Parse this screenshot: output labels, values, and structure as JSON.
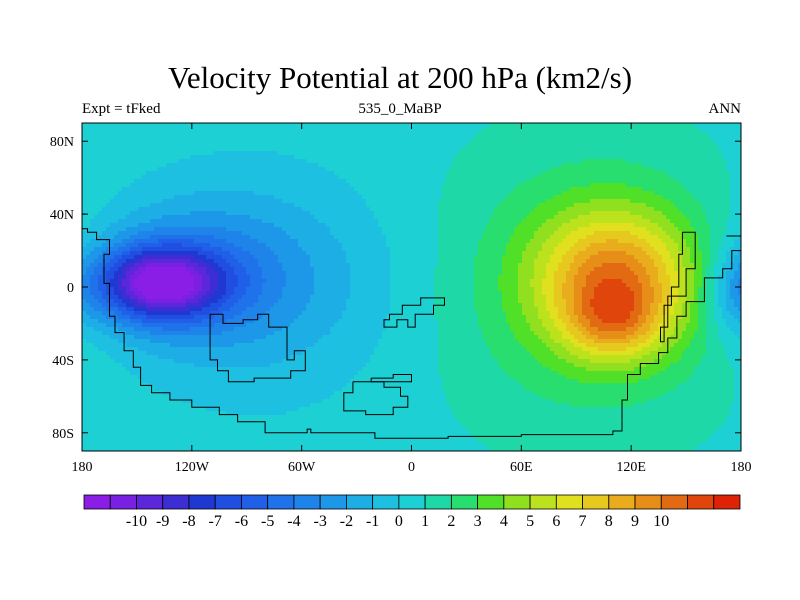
{
  "title": "Velocity Potential at 200 hPa (km2/s)",
  "left_label": "Expt = tFked",
  "center_label": "535_0_MaBP",
  "right_label": "ANN",
  "chart_data": {
    "type": "heatmap",
    "projection": "cylindrical-equidistant",
    "x_range": [
      -180,
      180
    ],
    "y_range": [
      -90,
      90
    ],
    "x_tick_values": [
      -180,
      -120,
      -60,
      0,
      60,
      120,
      180
    ],
    "x_tick_labels": [
      "180",
      "120W",
      "60W",
      "0",
      "60E",
      "120E",
      "180"
    ],
    "y_tick_values": [
      80,
      40,
      0,
      -40,
      -80
    ],
    "y_tick_labels": [
      "80N",
      "40N",
      "0",
      "40S",
      "80S"
    ],
    "colorbar": {
      "levels": [
        -10,
        -9,
        -8,
        -7,
        -6,
        -5,
        -4,
        -3,
        -2,
        -1,
        0,
        1,
        2,
        3,
        4,
        5,
        6,
        7,
        8,
        9,
        10
      ],
      "labels": [
        "-10",
        "-9",
        "-8",
        "-7",
        "-6",
        "-5",
        "-4",
        "-3",
        "-2",
        "-1",
        "0",
        "1",
        "2",
        "3",
        "4",
        "5",
        "6",
        "7",
        "8",
        "9",
        "10"
      ],
      "colors": [
        "#8a1ee6",
        "#7a20e2",
        "#5c26da",
        "#3c2ed2",
        "#2038d2",
        "#1f4ee0",
        "#2060e8",
        "#1f72ea",
        "#1e84ea",
        "#1d98e8",
        "#1eaee6",
        "#1ec0e2",
        "#1dd0d4",
        "#1ed8a8",
        "#28de6e",
        "#50e028",
        "#90e020",
        "#bce21e",
        "#e0e01e",
        "#e6c81e",
        "#e8ac1c",
        "#e68e18",
        "#e26a12",
        "#e0450c",
        "#dd2206"
      ]
    },
    "field_centers": [
      {
        "lon": -138,
        "lat": 2,
        "value": -8.5,
        "sx": 24,
        "sy": 14
      },
      {
        "lon": -120,
        "lat": 6,
        "value": -3.0,
        "sx": 45,
        "sy": 28
      },
      {
        "lon": -80,
        "lat": 0,
        "value": -1.5,
        "sx": 80,
        "sy": 45
      },
      {
        "lon": 112,
        "lat": 4,
        "value": 6.3,
        "sx": 30,
        "sy": 26
      },
      {
        "lon": 110,
        "lat": -20,
        "value": 3.0,
        "sx": 18,
        "sy": 14
      },
      {
        "lon": 98,
        "lat": 0,
        "value": 2.5,
        "sx": 70,
        "sy": 55
      },
      {
        "lon": 175,
        "lat": -5,
        "value": -1.5,
        "sx": 10,
        "sy": 16
      }
    ],
    "coastlines": [
      [
        [
          -180,
          32
        ],
        [
          -177,
          32
        ],
        [
          -177,
          30
        ],
        [
          -172,
          30
        ],
        [
          -172,
          26
        ],
        [
          -165,
          26
        ],
        [
          -165,
          18
        ],
        [
          -168,
          18
        ],
        [
          -168,
          2
        ],
        [
          -165,
          2
        ],
        [
          -165,
          -16
        ],
        [
          -162,
          -16
        ],
        [
          -162,
          -25
        ],
        [
          -157,
          -25
        ],
        [
          -157,
          -35
        ],
        [
          -152,
          -35
        ],
        [
          -152,
          -44
        ],
        [
          -148,
          -44
        ],
        [
          -148,
          -54
        ],
        [
          -142,
          -54
        ],
        [
          -142,
          -58
        ],
        [
          -132,
          -58
        ],
        [
          -132,
          -62
        ],
        [
          -120,
          -62
        ],
        [
          -120,
          -66
        ],
        [
          -105,
          -66
        ],
        [
          -105,
          -70
        ],
        [
          -95,
          -70
        ],
        [
          -95,
          -74
        ],
        [
          -80,
          -74
        ],
        [
          -80,
          -80
        ],
        [
          -57,
          -80
        ],
        [
          -57,
          -78
        ],
        [
          -55,
          -78
        ],
        [
          -55,
          -80
        ],
        [
          -20,
          -80
        ],
        [
          -20,
          -83
        ],
        [
          20,
          -83
        ],
        [
          20,
          -82
        ],
        [
          60,
          -82
        ],
        [
          60,
          -81
        ],
        [
          110,
          -81
        ],
        [
          110,
          -79
        ],
        [
          115,
          -79
        ],
        [
          115,
          -62
        ],
        [
          118,
          -62
        ],
        [
          118,
          -48
        ],
        [
          125,
          -48
        ],
        [
          125,
          -42
        ],
        [
          135,
          -42
        ],
        [
          135,
          -36
        ],
        [
          140,
          -36
        ],
        [
          140,
          -28
        ],
        [
          145,
          -28
        ],
        [
          145,
          -16
        ],
        [
          150,
          -16
        ],
        [
          150,
          -8
        ],
        [
          160,
          -8
        ],
        [
          160,
          5
        ],
        [
          170,
          5
        ],
        [
          170,
          10
        ],
        [
          175,
          10
        ],
        [
          175,
          20
        ],
        [
          180,
          20
        ]
      ],
      [
        [
          -110,
          -15
        ],
        [
          -103,
          -15
        ],
        [
          -103,
          -20
        ],
        [
          -92,
          -20
        ],
        [
          -92,
          -18
        ],
        [
          -84,
          -18
        ],
        [
          -84,
          -15
        ],
        [
          -78,
          -15
        ],
        [
          -78,
          -22
        ],
        [
          -68,
          -22
        ],
        [
          -68,
          -40
        ],
        [
          -64,
          -40
        ],
        [
          -64,
          -35
        ],
        [
          -58,
          -35
        ],
        [
          -58,
          -46
        ],
        [
          -66,
          -46
        ],
        [
          -66,
          -50
        ],
        [
          -86,
          -50
        ],
        [
          -86,
          -52
        ],
        [
          -100,
          -52
        ],
        [
          -100,
          -46
        ],
        [
          -106,
          -46
        ],
        [
          -106,
          -40
        ],
        [
          -110,
          -40
        ],
        [
          -110,
          -15
        ]
      ],
      [
        [
          -12,
          -15
        ],
        [
          -5,
          -15
        ],
        [
          -5,
          -10
        ],
        [
          5,
          -10
        ],
        [
          5,
          -6
        ],
        [
          18,
          -6
        ],
        [
          18,
          -10
        ],
        [
          12,
          -10
        ],
        [
          12,
          -15
        ],
        [
          2,
          -15
        ],
        [
          2,
          -22
        ],
        [
          -2,
          -22
        ],
        [
          -2,
          -18
        ],
        [
          -8,
          -18
        ],
        [
          -8,
          -22
        ],
        [
          -15,
          -22
        ],
        [
          -15,
          -18
        ],
        [
          -12,
          -18
        ],
        [
          -12,
          -15
        ]
      ],
      [
        [
          -32,
          -52
        ],
        [
          -15,
          -52
        ],
        [
          -15,
          -55
        ],
        [
          -6,
          -55
        ],
        [
          -6,
          -60
        ],
        [
          -2,
          -60
        ],
        [
          -2,
          -66
        ],
        [
          -10,
          -66
        ],
        [
          -10,
          -70
        ],
        [
          -25,
          -70
        ],
        [
          -25,
          -68
        ],
        [
          -37,
          -68
        ],
        [
          -37,
          -58
        ],
        [
          -32,
          -58
        ],
        [
          -32,
          -52
        ]
      ],
      [
        [
          -22,
          -50
        ],
        [
          -10,
          -50
        ],
        [
          -10,
          -48
        ],
        [
          0,
          -48
        ],
        [
          0,
          -52
        ],
        [
          -22,
          -52
        ],
        [
          -22,
          -50
        ]
      ],
      [
        [
          148,
          30
        ],
        [
          155,
          30
        ],
        [
          155,
          10
        ],
        [
          150,
          10
        ],
        [
          150,
          -5
        ],
        [
          140,
          -5
        ],
        [
          140,
          -22
        ],
        [
          136,
          -22
        ],
        [
          136,
          -30
        ],
        [
          138,
          -30
        ],
        [
          138,
          -10
        ],
        [
          142,
          -10
        ],
        [
          142,
          0
        ],
        [
          146,
          0
        ],
        [
          146,
          18
        ],
        [
          148,
          18
        ],
        [
          148,
          30
        ]
      ],
      [
        [
          172,
          28
        ],
        [
          180,
          28
        ]
      ],
      [
        [
          -180,
          40
        ],
        [
          -178,
          40
        ]
      ]
    ]
  }
}
